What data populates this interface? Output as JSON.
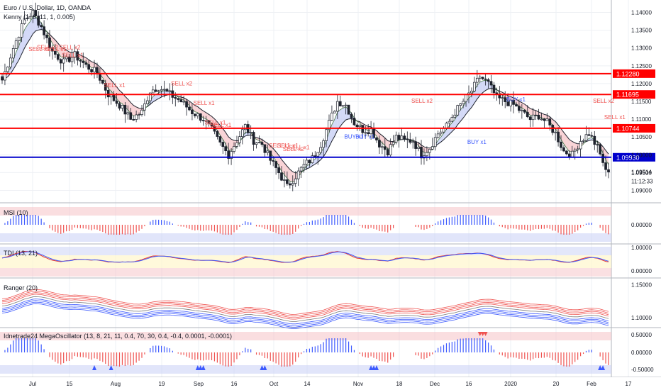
{
  "header": {
    "symbol": "Euro / U.S. Dollar, 1D, OANDA",
    "indicator": "Kenny (1, 8, 11, 1, 0.005)"
  },
  "colors": {
    "bull": "#ffffff",
    "bear": "#1e222d",
    "resistance": "#ff0000",
    "support": "#0000cc",
    "sell": "#ef5350",
    "buy": "#3d5afe",
    "ribbon_red": "#f8c8cc",
    "ribbon_blue": "#c8cff5"
  },
  "chart_data": [
    {
      "type": "candlestick",
      "name": "price",
      "title": "Euro / U.S. Dollar, 1D, OANDA",
      "ylim": [
        1.0865,
        1.1435
      ],
      "y_ticks": [
        "1.14000",
        "1.13500",
        "1.13000",
        "1.12500",
        "1.12000",
        "1.11500",
        "1.11000",
        "1.10500",
        "1.10000",
        "1.09500",
        "1.09000"
      ],
      "levels": [
        {
          "value": 1.1228,
          "label": "1.12280",
          "color": "#ff0000"
        },
        {
          "value": 1.11695,
          "label": "1.11695",
          "color": "#ff0000"
        },
        {
          "value": 1.10744,
          "label": "1.10744",
          "color": "#ff0000"
        },
        {
          "value": 1.0993,
          "label": "1.09930",
          "color": "#0000cc"
        }
      ],
      "last_price": {
        "value": 1.09514,
        "label": "1.09514",
        "countdown": "11:12:33"
      },
      "close_path": [
        [
          0,
          1.121
        ],
        [
          4,
          1.13
        ],
        [
          8,
          1.138
        ],
        [
          11,
          1.14
        ],
        [
          14,
          1.136
        ],
        [
          18,
          1.129
        ],
        [
          22,
          1.126
        ],
        [
          26,
          1.128
        ],
        [
          30,
          1.125
        ],
        [
          34,
          1.123
        ],
        [
          38,
          1.117
        ],
        [
          42,
          1.114
        ],
        [
          46,
          1.11
        ],
        [
          50,
          1.112
        ],
        [
          53,
          1.118
        ],
        [
          56,
          1.119
        ],
        [
          60,
          1.117
        ],
        [
          64,
          1.115
        ],
        [
          68,
          1.112
        ],
        [
          72,
          1.11
        ],
        [
          75,
          1.107
        ],
        [
          78,
          1.103
        ],
        [
          81,
          1.1
        ],
        [
          84,
          1.104
        ],
        [
          87,
          1.108
        ],
        [
          90,
          1.104
        ],
        [
          93,
          1.103
        ],
        [
          96,
          1.0985
        ],
        [
          99,
          1.095
        ],
        [
          102,
          1.091
        ],
        [
          105,
          1.094
        ],
        [
          108,
          1.097
        ],
        [
          111,
          1.099
        ],
        [
          114,
          1.103
        ],
        [
          117,
          1.109
        ],
        [
          120,
          1.115
        ],
        [
          123,
          1.114
        ],
        [
          126,
          1.109
        ],
        [
          129,
          1.107
        ],
        [
          132,
          1.107
        ],
        [
          135,
          1.103
        ],
        [
          138,
          1.101
        ],
        [
          141,
          1.105
        ],
        [
          144,
          1.104
        ],
        [
          147,
          1.104
        ],
        [
          150,
          1.1
        ],
        [
          153,
          1.102
        ],
        [
          156,
          1.106
        ],
        [
          159,
          1.108
        ],
        [
          162,
          1.112
        ],
        [
          165,
          1.115
        ],
        [
          168,
          1.118
        ],
        [
          171,
          1.122
        ],
        [
          174,
          1.12
        ],
        [
          177,
          1.116
        ],
        [
          180,
          1.115
        ],
        [
          183,
          1.114
        ],
        [
          186,
          1.112
        ],
        [
          189,
          1.11
        ],
        [
          192,
          1.111
        ],
        [
          195,
          1.109
        ],
        [
          198,
          1.106
        ],
        [
          201,
          1.101
        ],
        [
          204,
          1.1
        ],
        [
          207,
          1.104
        ],
        [
          210,
          1.106
        ],
        [
          213,
          1.102
        ],
        [
          215,
          1.098
        ],
        [
          216,
          1.0951
        ]
      ],
      "signals": [
        {
          "text": "SELL x1",
          "i": 13,
          "v": 1.1292
        },
        {
          "text": "SELL x2",
          "i": 16,
          "v": 1.1296
        },
        {
          "text": "SELL x1",
          "i": 19,
          "v": 1.1292
        },
        {
          "text": "SELL x2",
          "i": 24,
          "v": 1.1296
        },
        {
          "text": "SELL x1",
          "i": 25,
          "v": 1.1275
        },
        {
          "text": "SELL x1",
          "i": 40,
          "v": 1.119
        },
        {
          "text": "SELL x2",
          "i": 64,
          "v": 1.1195
        },
        {
          "text": "SELL x1",
          "i": 72,
          "v": 1.114
        },
        {
          "text": "SELL x1",
          "i": 76,
          "v": 1.1085
        },
        {
          "text": "SELL x1",
          "i": 78,
          "v": 1.1078
        },
        {
          "text": "SELL x1",
          "i": 99,
          "v": 1.102
        },
        {
          "text": "SELL x1",
          "i": 102,
          "v": 1.102
        },
        {
          "text": "SELL x2",
          "i": 104,
          "v": 1.101
        },
        {
          "text": "SELL x1",
          "i": 106,
          "v": 1.1015
        },
        {
          "text": "BUY x1",
          "i": 126,
          "v": 1.1045
        },
        {
          "text": "BUY x1",
          "i": 130,
          "v": 1.1045
        },
        {
          "text": "SELL x2",
          "i": 150,
          "v": 1.1146
        },
        {
          "text": "BUY x1",
          "i": 170,
          "v": 1.103
        },
        {
          "text": "BUY x1",
          "i": 184,
          "v": 1.115
        },
        {
          "text": "SELL x2",
          "i": 215,
          "v": 1.1146
        },
        {
          "text": "SELL x1",
          "i": 219,
          "v": 1.11
        }
      ],
      "x_ticks": [
        "Jul",
        "15",
        "Aug",
        "19",
        "Sep",
        "16",
        "Oct",
        "14",
        "Nov",
        "18",
        "Dec",
        "16",
        "2020",
        "20",
        "Feb",
        "17"
      ]
    },
    {
      "type": "histogram",
      "name": "MSI (10)",
      "y_ticks": [
        "0.00000"
      ]
    },
    {
      "type": "line",
      "name": "TDI (13, 21)",
      "y_ticks": [
        "1.00000",
        "0.00000"
      ]
    },
    {
      "type": "line",
      "name": "Ranger (20)",
      "y_ticks": [
        "1.15000",
        "1.10000"
      ]
    },
    {
      "type": "histogram",
      "name": "Idnetrade24 MegaOscillator (13, 8, 21, 11, 0.4, 70, 30, 0.4, -0.4, 0.0001, -0.0001)",
      "y_ticks": [
        "0.50000",
        "0.00000",
        "-0.50000"
      ]
    }
  ]
}
